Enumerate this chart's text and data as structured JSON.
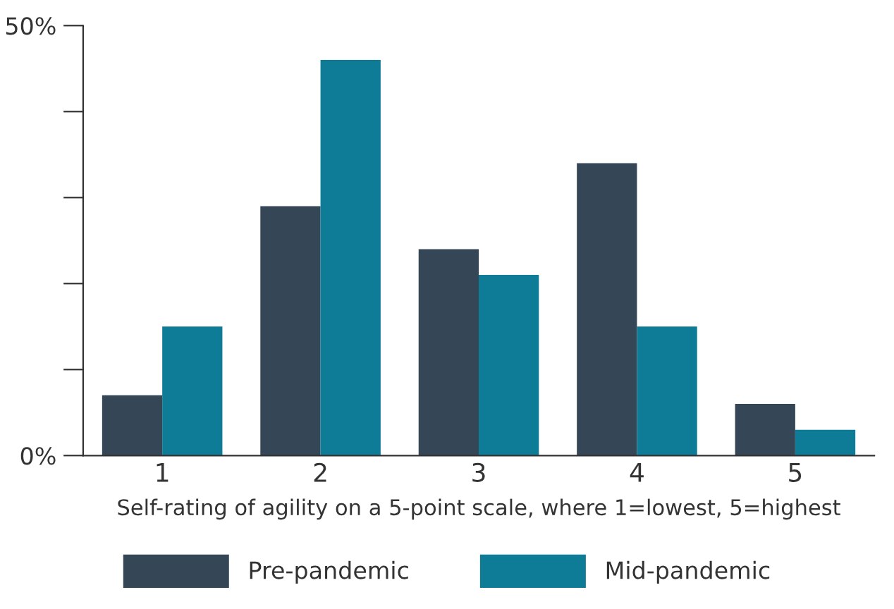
{
  "chart_data": {
    "type": "bar",
    "xlabel": "Self-rating of agility on a 5-point scale, where 1=lowest, 5=highest",
    "categories": [
      "1",
      "2",
      "3",
      "4",
      "5"
    ],
    "series": [
      {
        "name": "Pre-pandemic",
        "color": "#354657",
        "values": [
          7,
          29,
          24,
          34,
          6
        ]
      },
      {
        "name": "Mid-pandemic",
        "color": "#0e7c96",
        "values": [
          15,
          46,
          21,
          15,
          3
        ]
      }
    ],
    "ylim": [
      0,
      50
    ],
    "yticks": [
      {
        "value": 0,
        "label": "0%"
      },
      {
        "value": 10,
        "label": null
      },
      {
        "value": 20,
        "label": null
      },
      {
        "value": 30,
        "label": null
      },
      {
        "value": 40,
        "label": null
      },
      {
        "value": 50,
        "label": "50%"
      }
    ],
    "grid": false,
    "legend": "bottom"
  }
}
